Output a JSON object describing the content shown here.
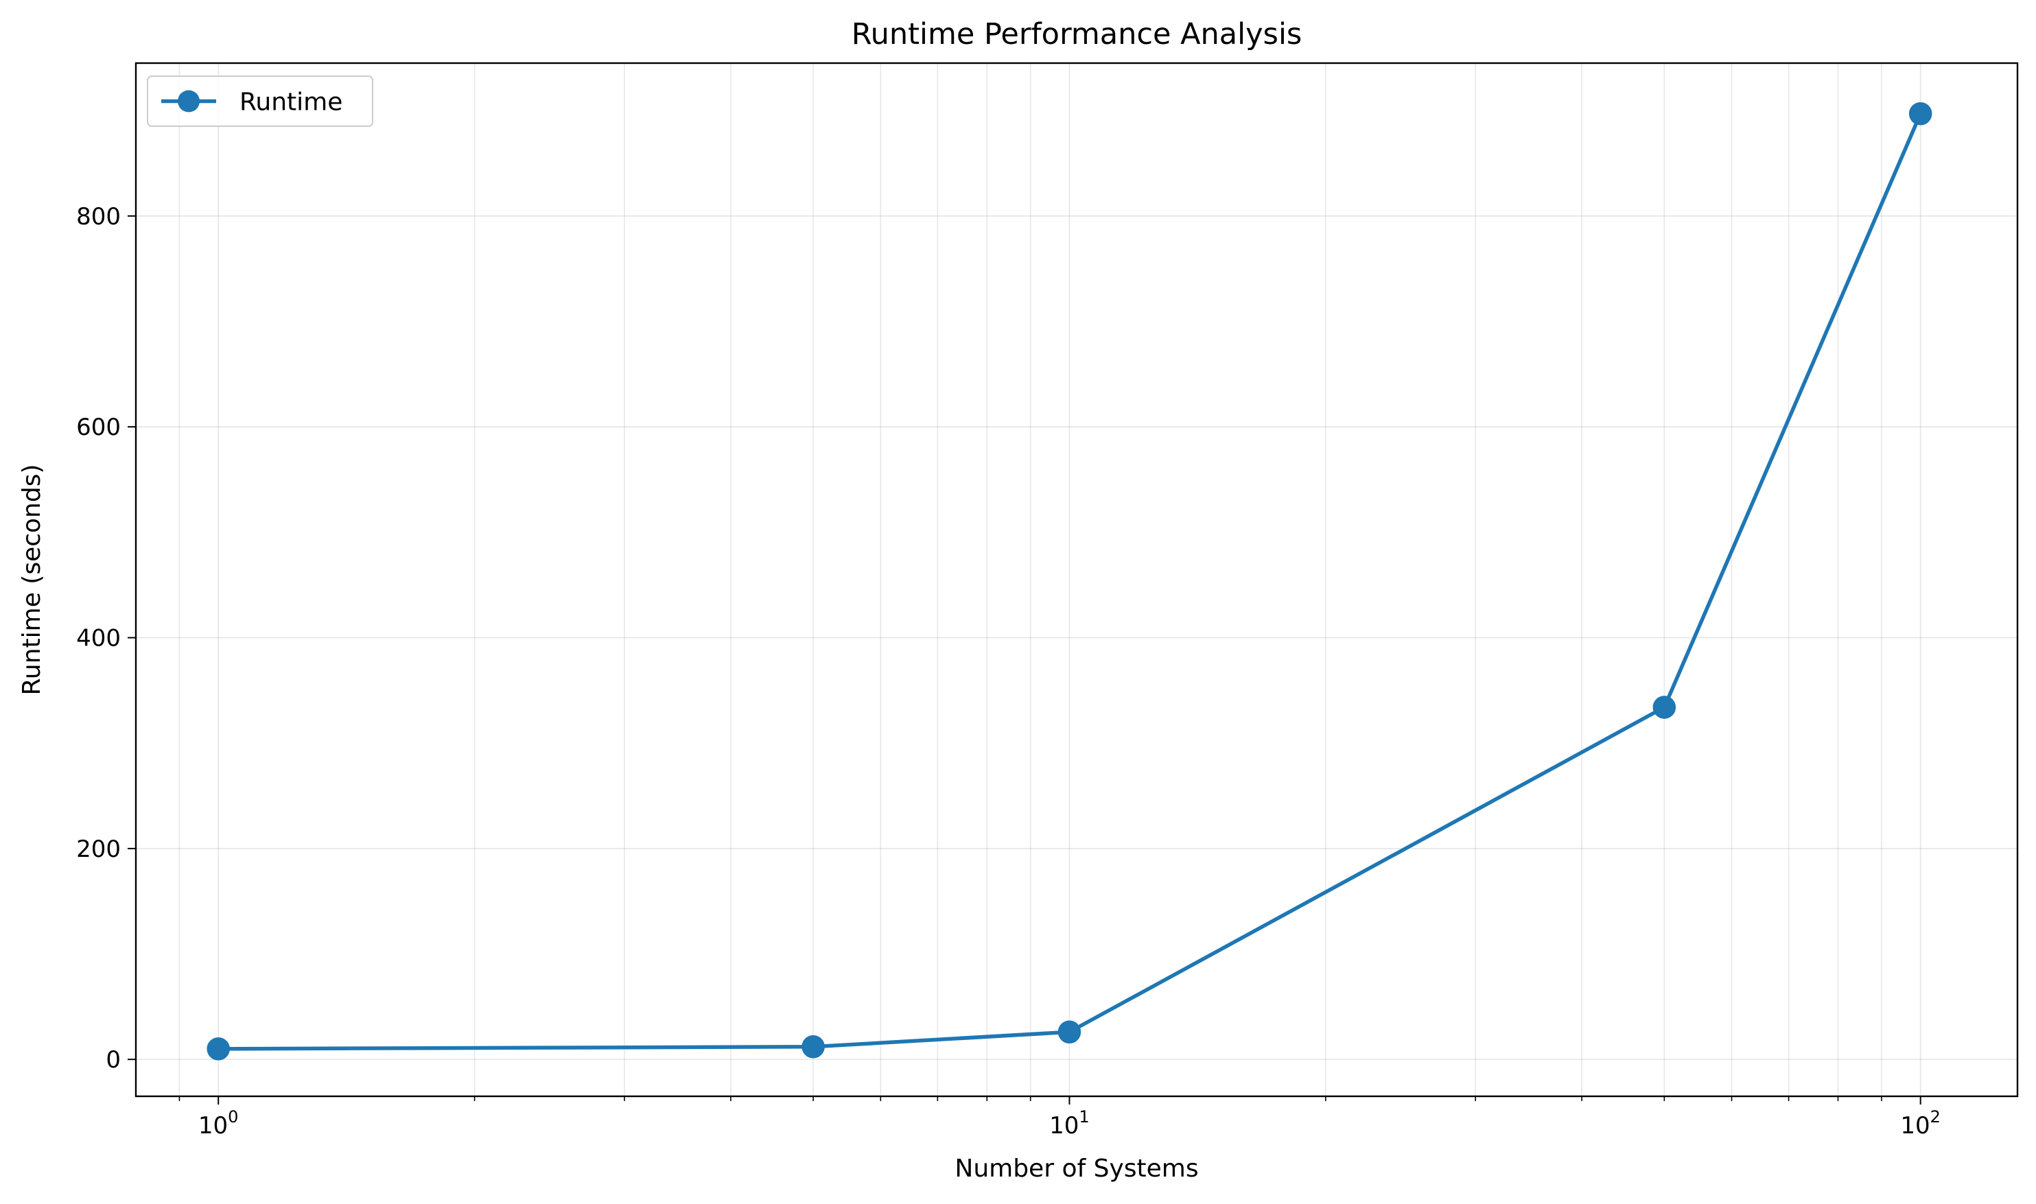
{
  "chart_data": {
    "type": "line",
    "title": "Runtime Performance Analysis",
    "xlabel": "Number of Systems",
    "ylabel": "Runtime (seconds)",
    "x_scale": "log",
    "xlim": [
      0.8,
      130
    ],
    "ylim": [
      -35,
      945
    ],
    "x_ticks": [
      {
        "value": 1,
        "base": "10",
        "exp": "0"
      },
      {
        "value": 10,
        "base": "10",
        "exp": "1"
      },
      {
        "value": 100,
        "base": "10",
        "exp": "2"
      }
    ],
    "y_ticks": [
      {
        "value": 0,
        "label": "0"
      },
      {
        "value": 200,
        "label": "200"
      },
      {
        "value": 400,
        "label": "400"
      },
      {
        "value": 600,
        "label": "600"
      },
      {
        "value": 800,
        "label": "800"
      }
    ],
    "grid": true,
    "legend_position": "top-left",
    "series": [
      {
        "name": "Runtime",
        "color": "#1f77b4",
        "x": [
          1,
          5,
          10,
          50,
          100
        ],
        "y": [
          10,
          12,
          26,
          334,
          897
        ]
      }
    ]
  }
}
